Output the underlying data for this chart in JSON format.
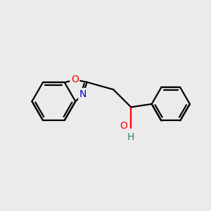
{
  "background_color": "#ebebeb",
  "bond_color": "#000000",
  "O_color": "#ff0000",
  "N_color": "#0000cc",
  "OH_color": "#2e8b57",
  "line_width": 1.6,
  "dbo": 0.12,
  "figsize": [
    3.0,
    3.0
  ],
  "dpi": 100,
  "xlim": [
    0,
    10
  ],
  "ylim": [
    0,
    10
  ]
}
